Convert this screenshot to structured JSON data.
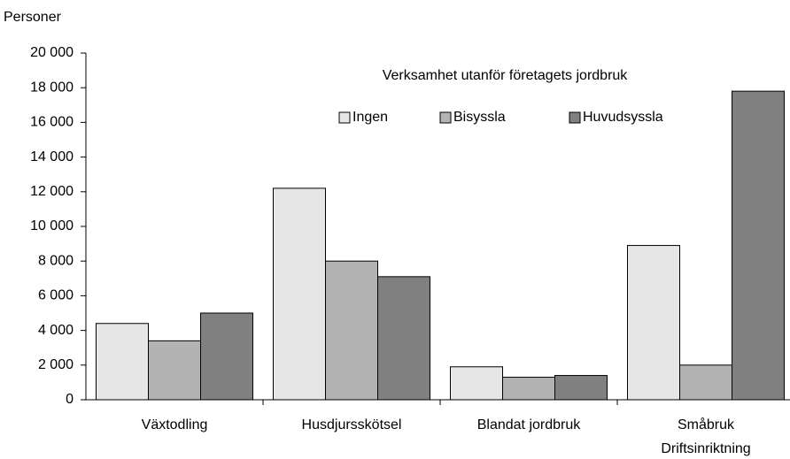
{
  "chart_data": {
    "type": "bar",
    "y_label": "Personer",
    "x_label": "Driftsinriktning",
    "legend_title": "Verksamhet utanför företagets jordbruk",
    "categories": [
      "Växtodling",
      "Husdjursskötsel",
      "Blandat jordbruk",
      "Småbruk"
    ],
    "series": [
      {
        "name": "Ingen",
        "color": "#e6e6e6",
        "values": [
          4400,
          12200,
          1900,
          8900
        ]
      },
      {
        "name": "Bisyssla",
        "color": "#b3b3b3",
        "values": [
          3400,
          8000,
          1300,
          2000
        ]
      },
      {
        "name": "Huvudsyssla",
        "color": "#808080",
        "values": [
          5000,
          7100,
          1400,
          17800
        ]
      }
    ],
    "ylim": [
      0,
      20000
    ],
    "yticks": [
      0,
      {
        "value": 2000,
        "label": "2 000"
      },
      {
        "value": 4000,
        "label": "4 000"
      },
      {
        "value": 6000,
        "label": "6 000"
      },
      {
        "value": 8000,
        "label": "8 000"
      },
      {
        "value": 10000,
        "label": "10 000"
      },
      {
        "value": 12000,
        "label": "12 000"
      },
      {
        "value": 14000,
        "label": "14 000"
      },
      {
        "value": 16000,
        "label": "16 000"
      },
      {
        "value": 18000,
        "label": "18 000"
      },
      {
        "value": 20000,
        "label": "20 000"
      }
    ],
    "grid": false
  }
}
